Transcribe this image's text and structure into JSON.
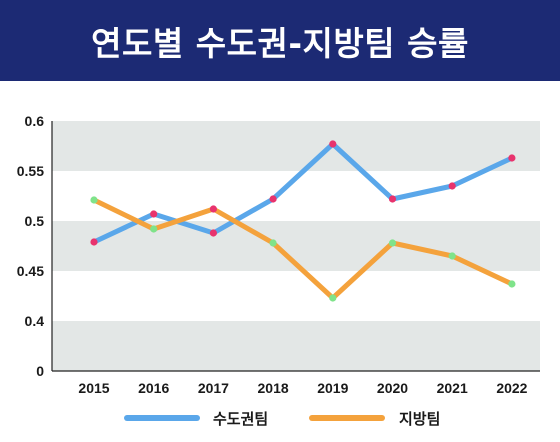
{
  "header": {
    "title": "연도별 수도권-지방팀 승률"
  },
  "colors": {
    "header_bg": "#1c2a74",
    "band": "#e3e7e6",
    "capital_line": "#5aa7ea",
    "local_line": "#f4a23c",
    "capital_marker": "#e8336d",
    "local_marker": "#7fe38a"
  },
  "chart_data": {
    "type": "line",
    "x": [
      "2015",
      "2016",
      "2017",
      "2018",
      "2019",
      "2020",
      "2021",
      "2022"
    ],
    "ylim": [
      0,
      0.6
    ],
    "y_ticks": [
      "0",
      "0.4",
      "0.45",
      "0.5",
      "0.55",
      "0.6"
    ],
    "series": [
      {
        "name": "수도권팀",
        "color": "#5aa7ea",
        "values": [
          0.479,
          0.507,
          0.488,
          0.522,
          0.577,
          0.522,
          0.535,
          0.563
        ],
        "markers": [
          "#e8336d",
          "#e8336d",
          "#e8336d",
          "#e8336d",
          "#e8336d",
          "#e8336d",
          "#e8336d",
          "#e8336d"
        ]
      },
      {
        "name": "지방팀",
        "color": "#f4a23c",
        "values": [
          0.521,
          0.492,
          0.512,
          0.478,
          0.423,
          0.478,
          0.465,
          0.437
        ],
        "markers": [
          "#7fe38a",
          "#7fe38a",
          "#e8336d",
          "#7fe38a",
          "#7fe38a",
          "#7fe38a",
          "#7fe38a",
          "#7fe38a"
        ]
      }
    ],
    "legend_position": "bottom",
    "grid": "alternating horizontal bands"
  }
}
